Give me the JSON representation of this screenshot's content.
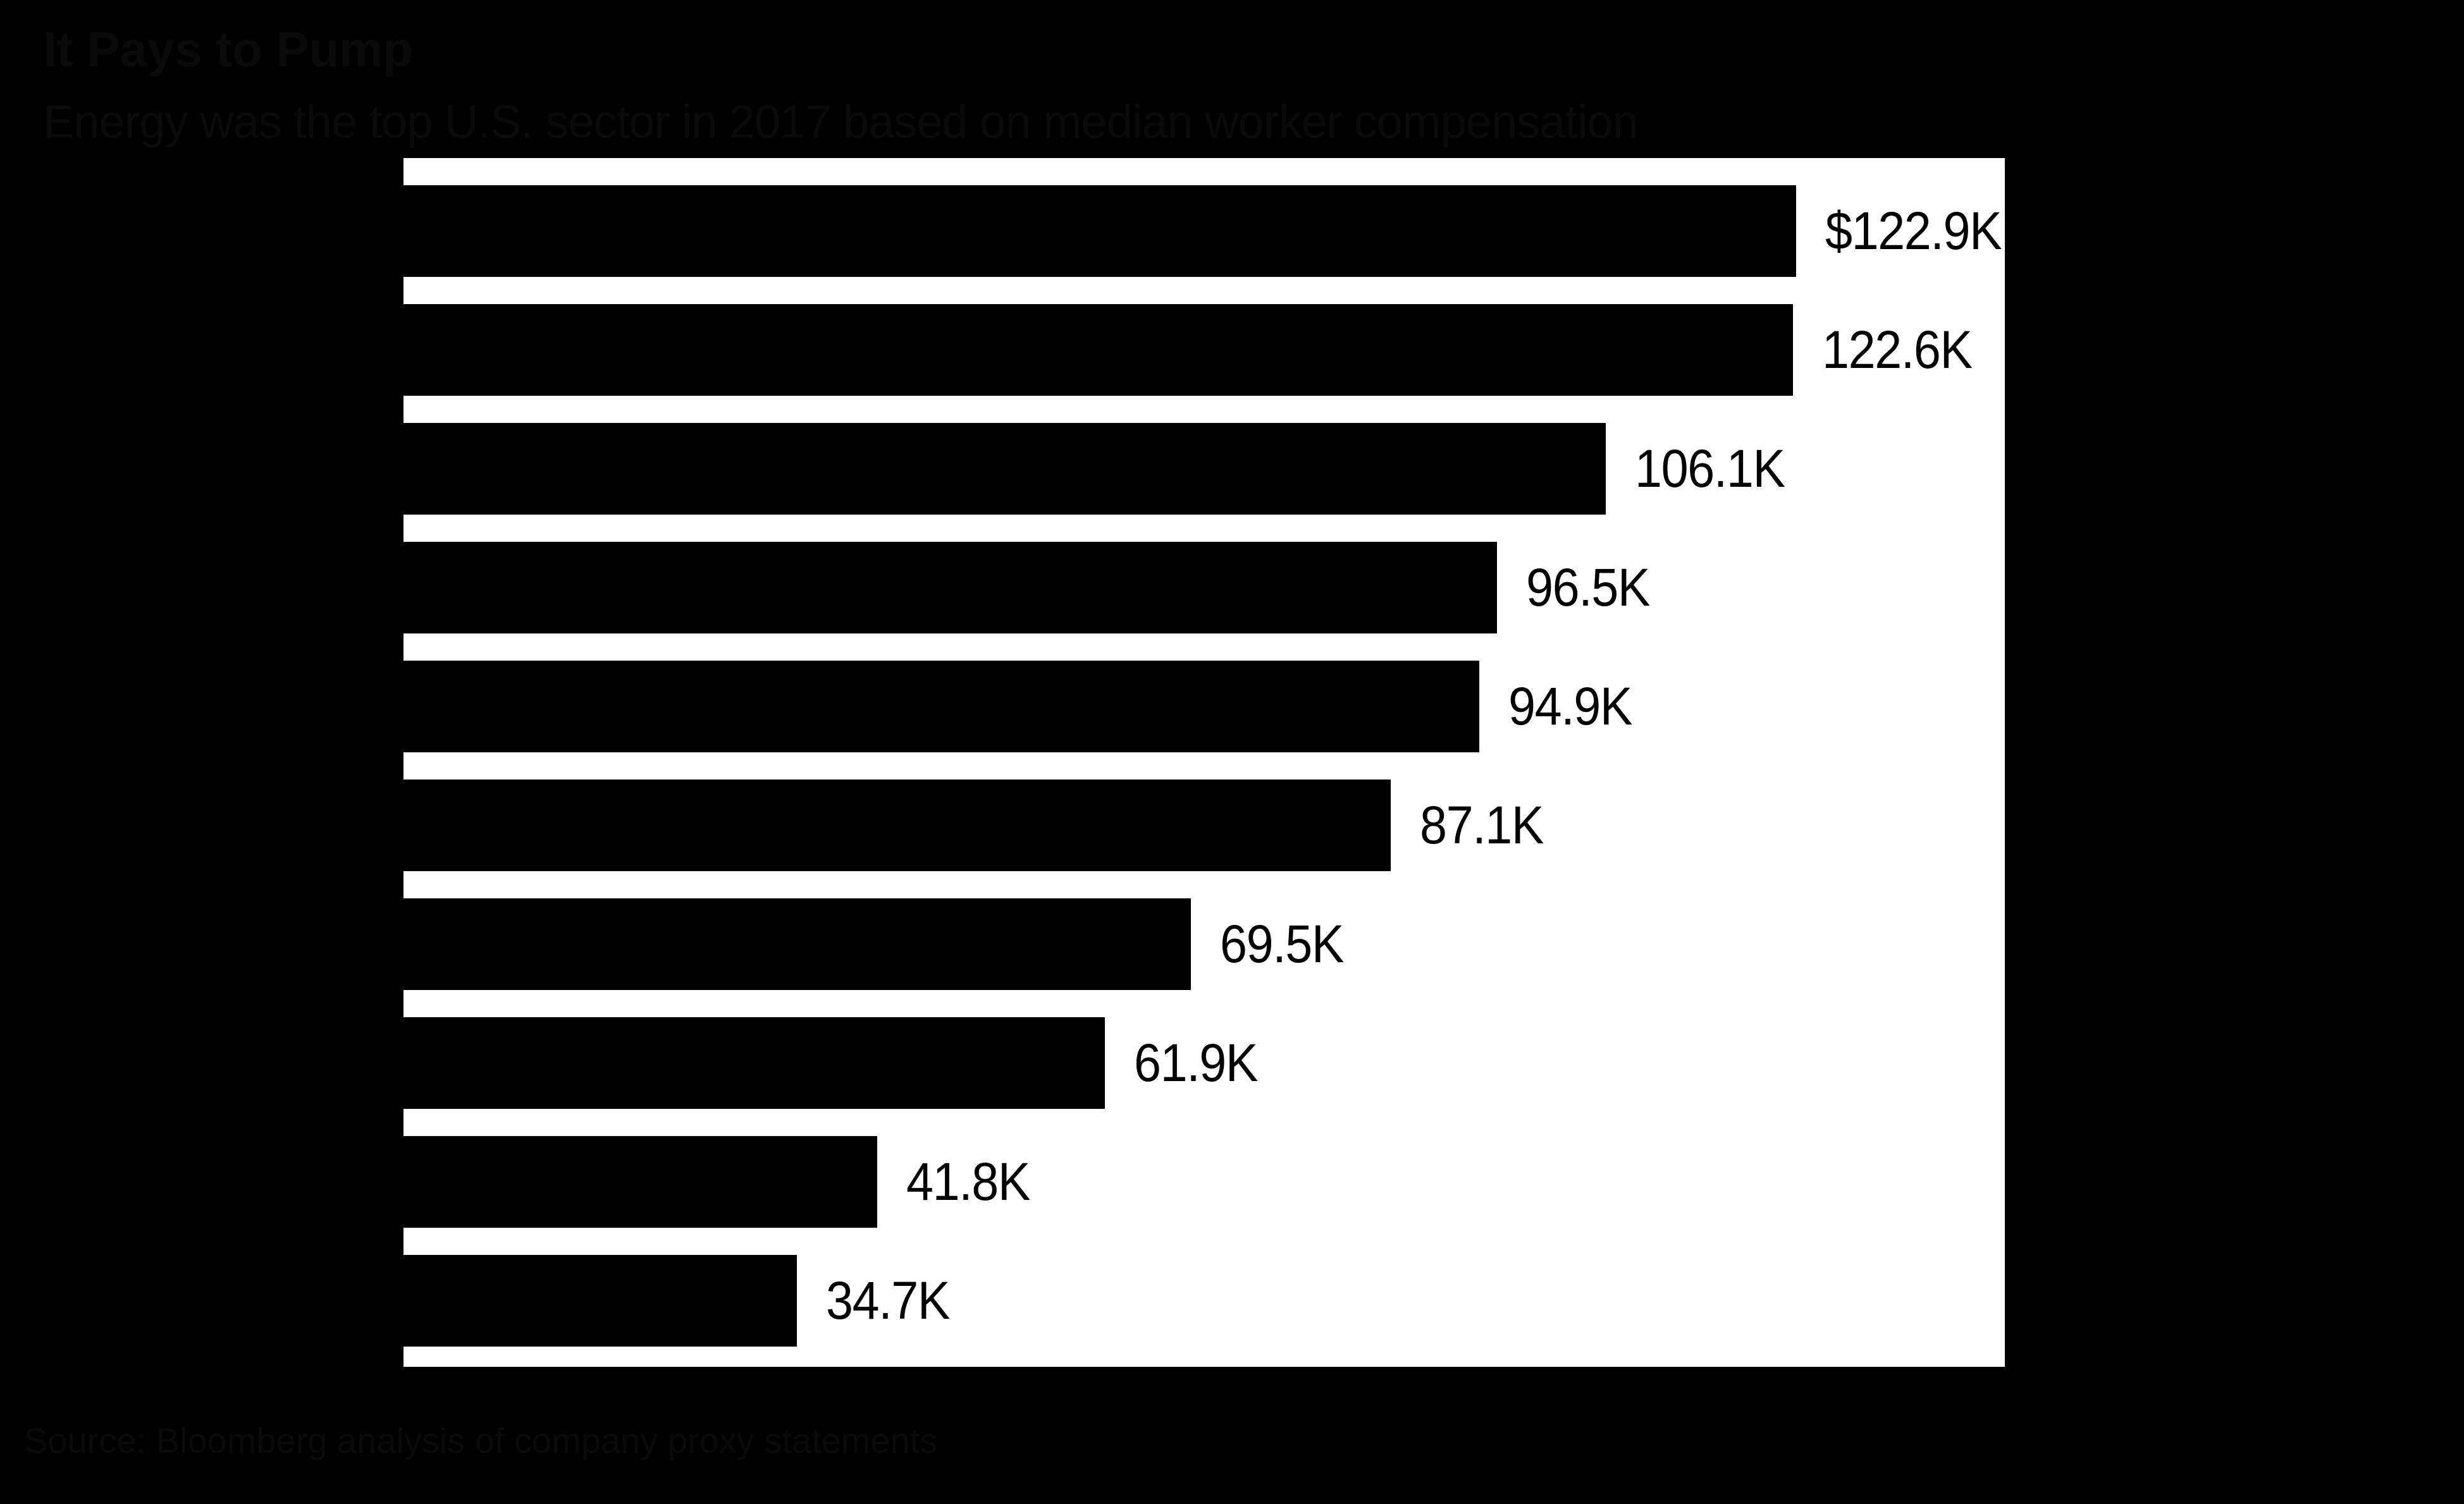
{
  "header": {
    "title": "It Pays to Pump",
    "subtitle": "Energy was the top U.S. sector in 2017 based on median worker compensation"
  },
  "footer": {
    "source": "Source: Bloomberg analysis of company proxy statements"
  },
  "colors": {
    "page_background": "#000000",
    "plot_background": "#ffffff",
    "bar": "#000000",
    "value_label_text": "#000000",
    "header_text": "#0a0a0a"
  },
  "chart_data": {
    "type": "bar",
    "orientation": "horizontal",
    "title": "It Pays to Pump",
    "subtitle": "Energy was the top U.S. sector in 2017 based on median worker compensation",
    "source": "Source: Bloomberg analysis of company proxy statements",
    "unit": "$K",
    "values": [
      122.9,
      122.6,
      106.1,
      96.5,
      94.9,
      87.1,
      69.5,
      61.9,
      41.8,
      34.7
    ],
    "value_labels": [
      "$122.9K",
      "122.6K",
      "106.1K",
      "96.5K",
      "94.9K",
      "87.1K",
      "69.5K",
      "61.9K",
      "41.8K",
      "34.7K"
    ],
    "xlim": [
      0,
      141.3
    ],
    "grid": false,
    "legend": false,
    "category_axis_labels_visible": false
  }
}
